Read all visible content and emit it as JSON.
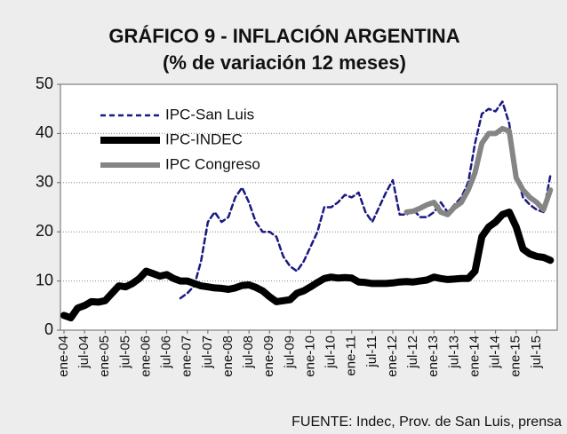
{
  "chart_data": {
    "type": "line",
    "title": "GRÁFICO 9 - INFLACIÓN ARGENTINA",
    "subtitle": "(% de variación 12 meses)",
    "source": "FUENTE: Indec, Prov. de San Luis, prensa",
    "categories": [
      "ene-04",
      null,
      null,
      "jul-04",
      null,
      null,
      "ene-05",
      null,
      null,
      "jul-05",
      null,
      null,
      "ene-06",
      null,
      null,
      "jul-06",
      null,
      null,
      "ene-07",
      null,
      null,
      "jul-07",
      null,
      null,
      "ene-08",
      null,
      null,
      "jul-08",
      null,
      null,
      "ene-09",
      null,
      null,
      "jul-09",
      null,
      null,
      "ene-10",
      null,
      null,
      "jul-10",
      null,
      null,
      "ene-11",
      null,
      null,
      "jul-11",
      null,
      null,
      "ene-12",
      null,
      null,
      "jul-12",
      null,
      null,
      "ene-13",
      null,
      null,
      "jul-13",
      null,
      null,
      "ene-14",
      null,
      null,
      "jul-14",
      null,
      null,
      "ene-15",
      null,
      null,
      "jul-15",
      null,
      null
    ],
    "series": [
      {
        "name": "IPC-San Luis",
        "color": "#1a1a80",
        "dash": true,
        "width": 2.5,
        "values": [
          null,
          null,
          null,
          null,
          null,
          null,
          null,
          null,
          null,
          null,
          null,
          null,
          null,
          null,
          null,
          null,
          null,
          6.5,
          7.5,
          9,
          14,
          22,
          24,
          22,
          23,
          27,
          29,
          26,
          22,
          20,
          20,
          19,
          15,
          13,
          12,
          14,
          17,
          20,
          25,
          25,
          26,
          27.5,
          27,
          28,
          24,
          22,
          25,
          28,
          30.5,
          23.5,
          23.5,
          24.5,
          23,
          23,
          24,
          26,
          24,
          25.5,
          27,
          30,
          38,
          44,
          45,
          44.5,
          46.5,
          42,
          32,
          27,
          25.5,
          24.5,
          24,
          31.5
        ]
      },
      {
        "name": "IPC-INDEC",
        "color": "#000000",
        "dash": false,
        "width": 8,
        "values": [
          3,
          2.5,
          4.5,
          5,
          5.8,
          5.7,
          6,
          7.5,
          9,
          8.8,
          9.5,
          10.5,
          12,
          11.5,
          11,
          11.3,
          10.5,
          10,
          10,
          9.5,
          9,
          8.8,
          8.6,
          8.5,
          8.3,
          8.6,
          9.1,
          9.2,
          8.7,
          8,
          6.8,
          5.8,
          6,
          6.2,
          7.5,
          8,
          8.8,
          9.7,
          10.5,
          10.8,
          10.6,
          10.7,
          10.6,
          9.8,
          9.7,
          9.5,
          9.5,
          9.5,
          9.6,
          9.8,
          9.9,
          9.8,
          10,
          10.2,
          10.8,
          10.5,
          10.3,
          10.4,
          10.5,
          10.5,
          12,
          19,
          21,
          22,
          23.5,
          24,
          21,
          16.5,
          15.5,
          15,
          14.8,
          14.2
        ]
      },
      {
        "name": "IPC Congreso",
        "color": "#858585",
        "dash": false,
        "width": 6,
        "values": [
          null,
          null,
          null,
          null,
          null,
          null,
          null,
          null,
          null,
          null,
          null,
          null,
          null,
          null,
          null,
          null,
          null,
          null,
          null,
          null,
          null,
          null,
          null,
          null,
          null,
          null,
          null,
          null,
          null,
          null,
          null,
          null,
          null,
          null,
          null,
          null,
          null,
          null,
          null,
          null,
          null,
          null,
          null,
          null,
          null,
          null,
          null,
          null,
          null,
          null,
          24,
          24.2,
          24.8,
          25.5,
          26,
          24,
          23.5,
          25,
          26,
          28.5,
          32,
          38,
          40,
          40,
          41,
          40.5,
          31,
          28.5,
          27,
          26,
          24.5,
          28.5
        ]
      }
    ],
    "ylim": [
      0,
      50
    ],
    "yticks": [
      0,
      10,
      20,
      30,
      40,
      50
    ],
    "grid": true,
    "legend": "top-left"
  }
}
